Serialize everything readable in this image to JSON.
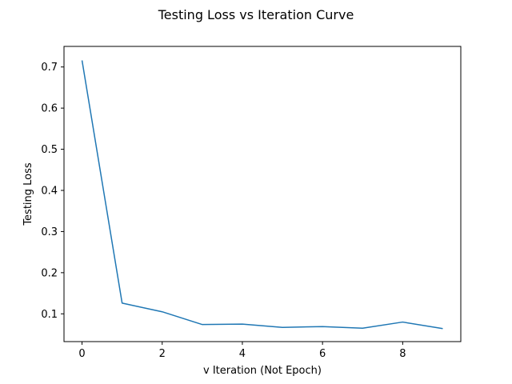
{
  "chart_data": {
    "type": "line",
    "title": "Testing Loss vs Iteration Curve",
    "xlabel": "v Iteration (Not Epoch)",
    "ylabel": "Testing Loss",
    "xlim": [
      -0.45,
      9.45
    ],
    "ylim": [
      0.0325,
      0.75
    ],
    "xticks": [
      0,
      2,
      4,
      6,
      8
    ],
    "yticks": [
      0.1,
      0.2,
      0.3,
      0.4,
      0.5,
      0.6,
      0.7
    ],
    "xtick_labels": [
      "0",
      "2",
      "4",
      "6",
      "8"
    ],
    "ytick_labels": [
      "0.1",
      "0.2",
      "0.3",
      "0.4",
      "0.5",
      "0.6",
      "0.7"
    ],
    "grid": false,
    "series": [
      {
        "color": "#1f77b4",
        "x": [
          0,
          1,
          2,
          3,
          4,
          5,
          6,
          7,
          8,
          9
        ],
        "y": [
          0.716,
          0.126,
          0.105,
          0.074,
          0.075,
          0.067,
          0.069,
          0.065,
          0.08,
          0.064
        ]
      }
    ]
  }
}
